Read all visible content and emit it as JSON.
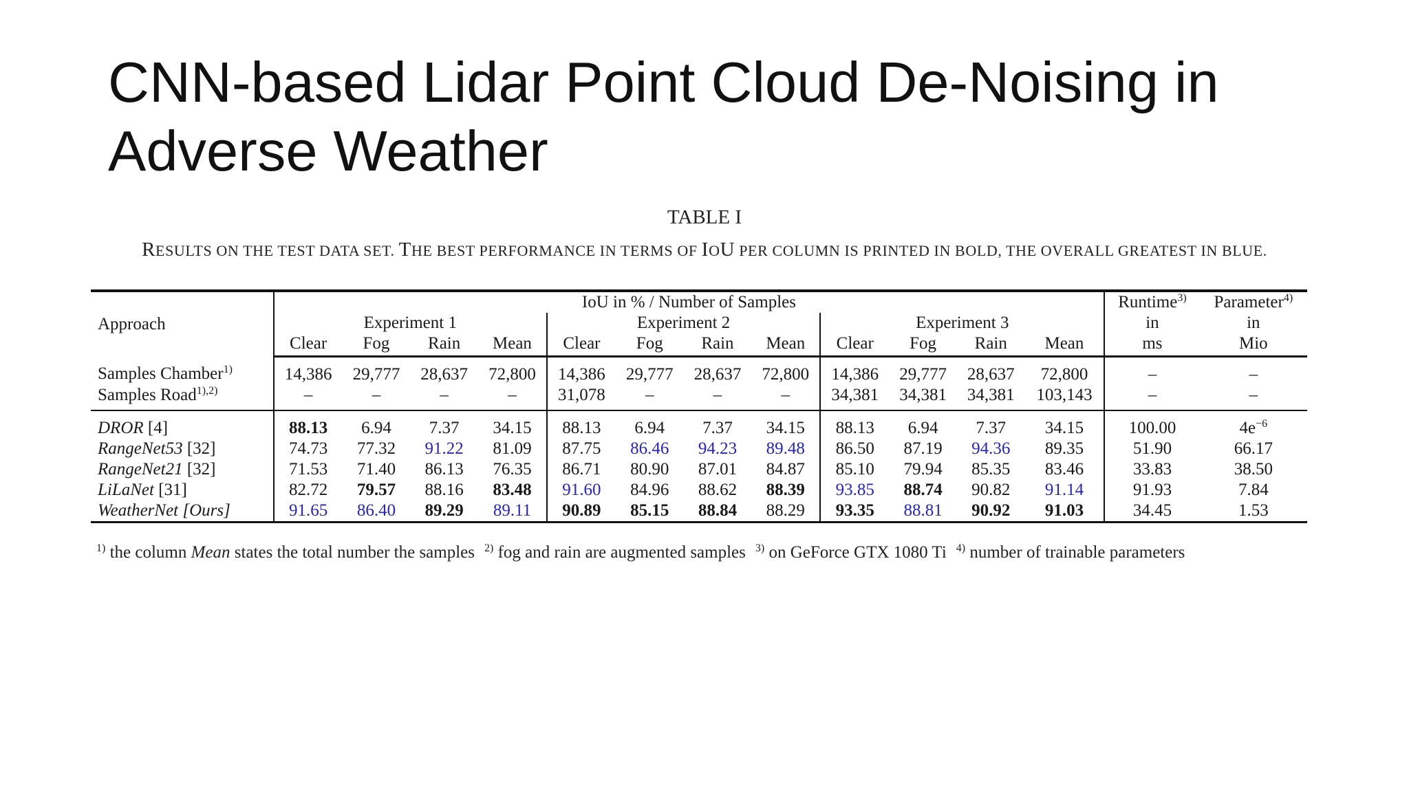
{
  "slide": {
    "title": "CNN-based Lidar Point Cloud De-Noising in Adverse Weather"
  },
  "table": {
    "caption": "TABLE I",
    "subcaption_parts": [
      {
        "cap": "R",
        "rest": "ESULTS ON THE TEST DATA SET. "
      },
      {
        "cap": "T",
        "rest": "HE BEST PERFORMANCE IN TERMS OF "
      },
      {
        "cap": "I",
        "rest": "O"
      },
      {
        "cap": "U",
        "rest": " PER COLUMN IS PRINTED IN BOLD, THE OVERALL GREATEST IN BLUE."
      }
    ],
    "header": {
      "approach": "Approach",
      "iou_group": "IoU in % / Number of Samples",
      "experiments": [
        "Experiment 1",
        "Experiment 2",
        "Experiment 3"
      ],
      "subcols": [
        "Clear",
        "Fog",
        "Rain",
        "Mean"
      ],
      "runtime": {
        "label": "Runtime",
        "sup": "3)",
        "line2": "in",
        "line3": "ms"
      },
      "parameter": {
        "label": "Parameter",
        "sup": "4)",
        "line2": "in",
        "line3": "Mio"
      }
    },
    "samples": [
      {
        "label": "Samples Chamber",
        "sup": "1)",
        "values": [
          "14,386",
          "29,777",
          "28,637",
          "72,800",
          "14,386",
          "29,777",
          "28,637",
          "72,800",
          "14,386",
          "29,777",
          "28,637",
          "72,800",
          "–",
          "–"
        ]
      },
      {
        "label": "Samples Road",
        "sup": "1),2)",
        "values": [
          "–",
          "–",
          "–",
          "–",
          "31,078",
          "–",
          "–",
          "–",
          "34,381",
          "34,381",
          "34,381",
          "103,143",
          "–",
          "–"
        ]
      }
    ],
    "results": [
      {
        "name": "DROR",
        "ref": " [4]",
        "values": [
          "88.13",
          "6.94",
          "7.37",
          "34.15",
          "88.13",
          "6.94",
          "7.37",
          "34.15",
          "88.13",
          "6.94",
          "7.37",
          "34.15",
          "100.00",
          "4e"
        ],
        "param_sup": "−6",
        "styles": [
          "b",
          "",
          "",
          "",
          "",
          "",
          "",
          "",
          "",
          "",
          "",
          "",
          "",
          ""
        ]
      },
      {
        "name": "RangeNet53",
        "ref": " [32]",
        "values": [
          "74.73",
          "77.32",
          "91.22",
          "81.09",
          "87.75",
          "86.46",
          "94.23",
          "89.48",
          "86.50",
          "87.19",
          "94.36",
          "89.35",
          "51.90",
          "66.17"
        ],
        "styles": [
          "",
          "",
          "u",
          "",
          "",
          "u",
          "u",
          "u",
          "",
          "",
          "u",
          "",
          "",
          ""
        ]
      },
      {
        "name": "RangeNet21",
        "ref": " [32]",
        "values": [
          "71.53",
          "71.40",
          "86.13",
          "76.35",
          "86.71",
          "80.90",
          "87.01",
          "84.87",
          "85.10",
          "79.94",
          "85.35",
          "83.46",
          "33.83",
          "38.50"
        ],
        "styles": [
          "",
          "",
          "",
          "",
          "",
          "",
          "",
          "",
          "",
          "",
          "",
          "",
          "",
          ""
        ]
      },
      {
        "name": "LiLaNet",
        "ref": " [31]",
        "values": [
          "82.72",
          "79.57",
          "88.16",
          "83.48",
          "91.60",
          "84.96",
          "88.62",
          "88.39",
          "93.85",
          "88.74",
          "90.82",
          "91.14",
          "91.93",
          "7.84"
        ],
        "styles": [
          "",
          "b",
          "",
          "b",
          "u",
          "",
          "",
          "b",
          "u",
          "b",
          "",
          "u",
          "",
          ""
        ]
      },
      {
        "name": "WeatherNet [Ours]",
        "ref": "",
        "values": [
          "91.65",
          "86.40",
          "89.29",
          "89.11",
          "90.89",
          "85.15",
          "88.84",
          "88.29",
          "93.35",
          "88.81",
          "90.92",
          "91.03",
          "34.45",
          "1.53"
        ],
        "styles": [
          "u",
          "u",
          "b",
          "u",
          "b",
          "b",
          "b",
          "",
          "b",
          "u",
          "b",
          "b",
          "",
          ""
        ]
      }
    ],
    "footnote_parts": [
      {
        "sup": "1)",
        "pre": " the column ",
        "it": "Mean",
        "post": " states the total number the samples"
      },
      {
        "sup": "2)",
        "pre": " fog and rain are augmented samples",
        "it": "",
        "post": ""
      },
      {
        "sup": "3)",
        "pre": " on GeForce GTX 1080 Ti",
        "it": "",
        "post": ""
      },
      {
        "sup": "4)",
        "pre": " number of trainable parameters",
        "it": "",
        "post": ""
      }
    ],
    "colors": {
      "best_overall": "#2424c8",
      "text": "#1a1a1a"
    }
  }
}
